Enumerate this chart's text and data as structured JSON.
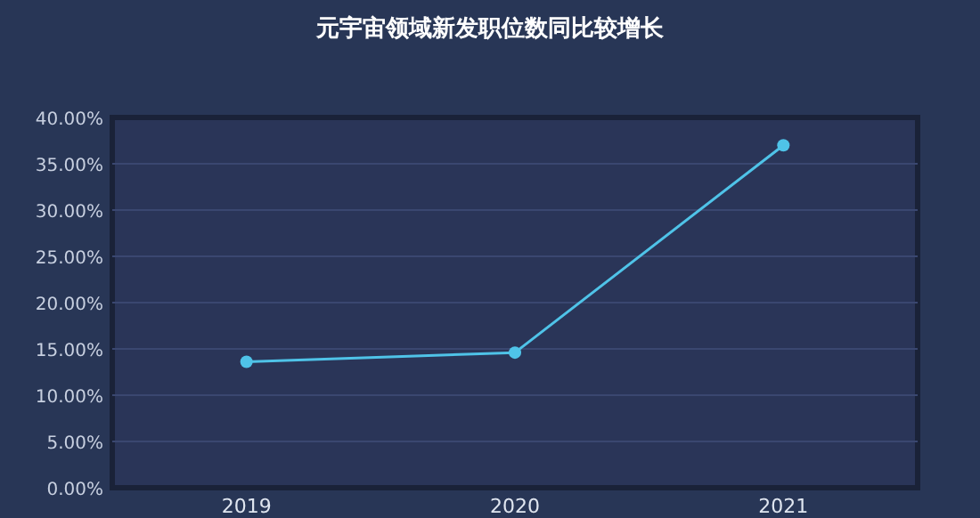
{
  "chart_data": {
    "type": "line",
    "title": "元宇宙领域新发职位数同比较增长",
    "categories": [
      "2019",
      "2020",
      "2021"
    ],
    "series": [
      {
        "color": "#4fc3e8",
        "values": [
          13.6,
          14.6,
          37.0
        ]
      }
    ],
    "ylim": [
      0,
      40
    ],
    "yticks": [
      {
        "value": 0,
        "label": "0.00%"
      },
      {
        "value": 5,
        "label": "5.00%"
      },
      {
        "value": 10,
        "label": "10.00%"
      },
      {
        "value": 15,
        "label": "15.00%"
      },
      {
        "value": 20,
        "label": "20.00%"
      },
      {
        "value": 25,
        "label": "25.00%"
      },
      {
        "value": 30,
        "label": "30.00%"
      },
      {
        "value": 35,
        "label": "35.00%"
      },
      {
        "value": 40,
        "label": "40.00%"
      }
    ],
    "grid": "y",
    "marker": "circle",
    "line_style": "solid"
  }
}
